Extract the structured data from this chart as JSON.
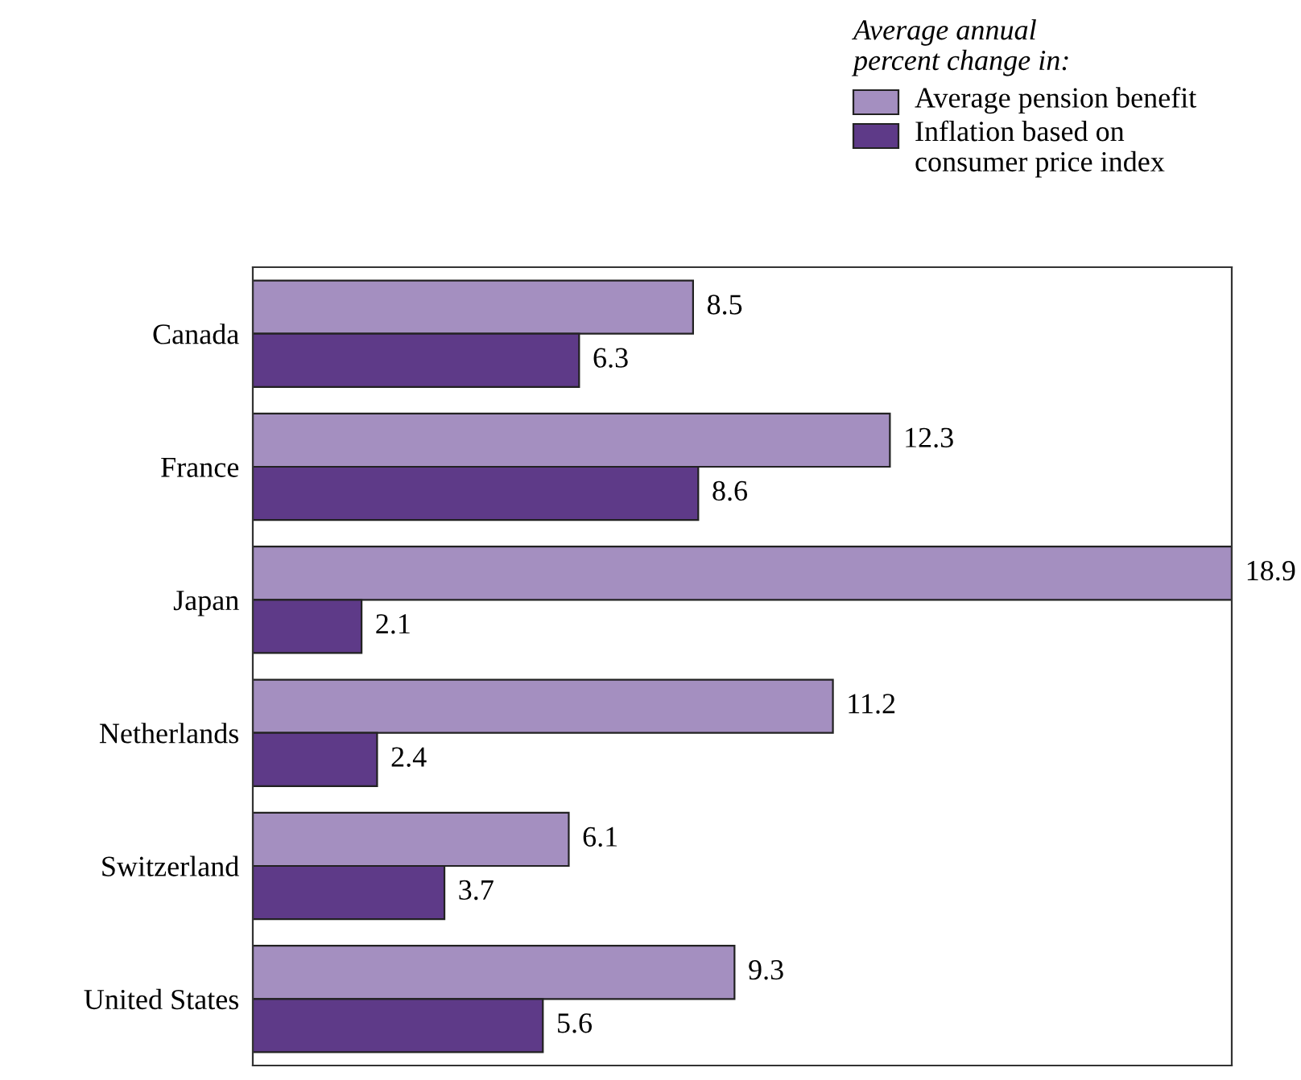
{
  "chart_data": {
    "type": "bar",
    "orientation": "horizontal",
    "legend_title": "Average annual\npercent change in:",
    "categories": [
      "Canada",
      "France",
      "Japan",
      "Netherlands",
      "Switzerland",
      "United States"
    ],
    "series": [
      {
        "name": "Average pension benefit",
        "color": "#a48fc0",
        "values": [
          8.5,
          12.3,
          18.9,
          11.2,
          6.1,
          9.3
        ]
      },
      {
        "name": "Inflation based on\nconsumer price index",
        "color": "#5e3a88",
        "values": [
          6.3,
          8.6,
          2.1,
          2.4,
          3.7,
          5.6
        ]
      }
    ],
    "xlim": [
      0,
      18.9
    ],
    "data_labels": true,
    "legend": "top right",
    "grid": false,
    "tick_labels": "y"
  }
}
